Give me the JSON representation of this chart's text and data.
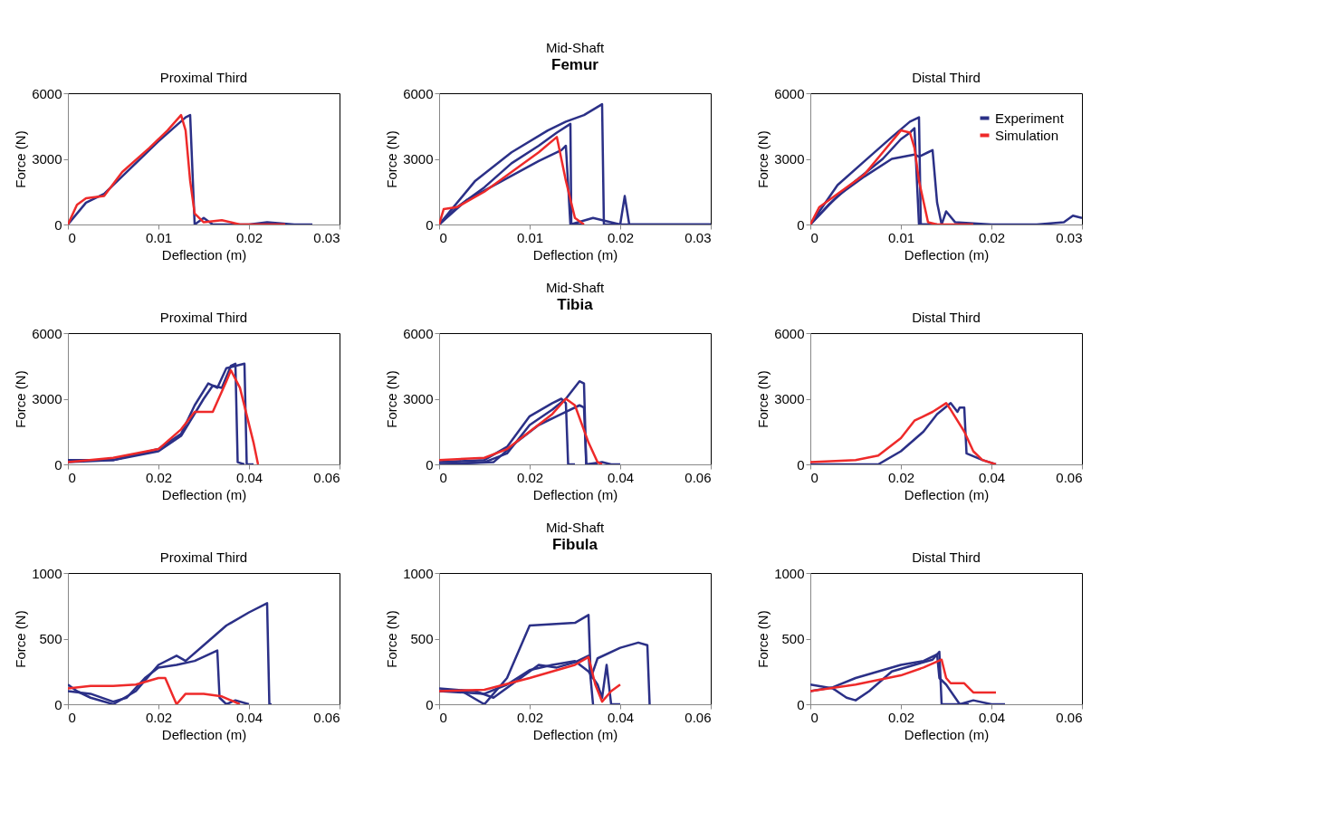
{
  "chart_data": [
    {
      "type": "line",
      "title": "Proximal Third",
      "xlabel": "Deflection (m)",
      "ylabel": "Force (N)",
      "xlim": [
        0,
        0.03
      ],
      "xticks": [
        0,
        0.01,
        0.02,
        0.03
      ],
      "ylim": [
        0,
        6000
      ],
      "yticks": [
        0,
        3000,
        6000
      ],
      "series": [
        {
          "color": "#2b3087",
          "x": [
            0,
            0.002,
            0.004,
            0.007,
            0.01,
            0.013,
            0.0135,
            0.014,
            0.015,
            0.016,
            0.02,
            0.022,
            0.025,
            0.027
          ],
          "values": [
            0,
            1000,
            1400,
            2600,
            3800,
            4900,
            5000,
            0,
            300,
            0,
            0,
            100,
            0,
            0
          ]
        },
        {
          "color": "#ee2a2a",
          "x": [
            0,
            0.001,
            0.002,
            0.004,
            0.006,
            0.009,
            0.011,
            0.0125,
            0.013,
            0.0135,
            0.014,
            0.015,
            0.017,
            0.019,
            0.024
          ],
          "values": [
            0,
            900,
            1200,
            1300,
            2400,
            3500,
            4300,
            5000,
            4300,
            2000,
            500,
            100,
            200,
            0,
            0
          ]
        }
      ]
    },
    {
      "type": "line",
      "title": "Mid-Shaft",
      "annotations": [
        "Femur"
      ],
      "xlabel": "Deflection (m)",
      "ylabel": "Force (N)",
      "xlim": [
        0,
        0.03
      ],
      "xticks": [
        0,
        0.01,
        0.02,
        0.03
      ],
      "ylim": [
        0,
        6000
      ],
      "yticks": [
        0,
        3000,
        6000
      ],
      "series": [
        {
          "color": "#2b3087",
          "x": [
            0,
            0.002,
            0.005,
            0.008,
            0.011,
            0.013,
            0.0145,
            0.0146,
            0.016
          ],
          "values": [
            0,
            800,
            1700,
            2800,
            3600,
            4200,
            4600,
            0,
            0
          ]
        },
        {
          "color": "#2b3087",
          "x": [
            0,
            0.004,
            0.008,
            0.012,
            0.014,
            0.016,
            0.018,
            0.0182,
            0.02,
            0.025,
            0.03
          ],
          "values": [
            0,
            2000,
            3300,
            4300,
            4700,
            5000,
            5500,
            0,
            0,
            0,
            0
          ]
        },
        {
          "color": "#2b3087",
          "x": [
            0,
            0.003,
            0.007,
            0.011,
            0.0135,
            0.014,
            0.0145,
            0.017,
            0.02,
            0.0205,
            0.021,
            0.03
          ],
          "values": [
            0,
            1100,
            2000,
            2900,
            3400,
            3600,
            0,
            300,
            0,
            1300,
            0,
            0
          ]
        },
        {
          "color": "#ee2a2a",
          "x": [
            0,
            0.0005,
            0.002,
            0.005,
            0.008,
            0.011,
            0.013,
            0.014,
            0.015,
            0.016
          ],
          "values": [
            0,
            700,
            800,
            1500,
            2400,
            3300,
            4000,
            2000,
            300,
            0
          ]
        }
      ]
    },
    {
      "type": "line",
      "title": "Distal Third",
      "legend": "top right",
      "xlabel": "Deflection (m)",
      "ylabel": "Force (N)",
      "xlim": [
        0,
        0.03
      ],
      "xticks": [
        0,
        0.01,
        0.02,
        0.03
      ],
      "ylim": [
        0,
        6000
      ],
      "yticks": [
        0,
        3000,
        6000
      ],
      "series": [
        {
          "name": "Experiment",
          "color": "#2b3087",
          "x": [
            0,
            0.003,
            0.006,
            0.009,
            0.011,
            0.012,
            0.0122,
            0.014
          ],
          "values": [
            0,
            1800,
            2900,
            4000,
            4700,
            4900,
            0,
            0
          ]
        },
        {
          "color": "#2b3087",
          "x": [
            0,
            0.003,
            0.006,
            0.009,
            0.0115,
            0.012,
            0.013,
            0.0135,
            0.014,
            0.0145,
            0.015,
            0.016,
            0.02,
            0.025,
            0.028,
            0.029,
            0.03
          ],
          "values": [
            0,
            1300,
            2200,
            3000,
            3200,
            3100,
            3300,
            3400,
            1000,
            0,
            600,
            100,
            0,
            0,
            100,
            400,
            300
          ]
        },
        {
          "color": "#2b3087",
          "x": [
            0,
            0.002,
            0.005,
            0.008,
            0.01,
            0.011,
            0.0115,
            0.012,
            0.013
          ],
          "values": [
            0,
            900,
            2000,
            3000,
            3900,
            4200,
            4400,
            0,
            0
          ]
        },
        {
          "name": "Simulation",
          "color": "#ee2a2a",
          "x": [
            0,
            0.001,
            0.003,
            0.006,
            0.008,
            0.01,
            0.011,
            0.0115,
            0.012,
            0.013,
            0.014,
            0.018
          ],
          "values": [
            0,
            800,
            1400,
            2300,
            3300,
            4300,
            4200,
            3500,
            2000,
            100,
            0,
            0
          ]
        }
      ]
    },
    {
      "type": "line",
      "title": "Proximal Third",
      "xlabel": "Deflection (m)",
      "ylabel": "Force (N)",
      "xlim": [
        0,
        0.06
      ],
      "xticks": [
        0,
        0.02,
        0.04,
        0.06
      ],
      "ylim": [
        0,
        6000
      ],
      "yticks": [
        0,
        3000,
        6000
      ],
      "series": [
        {
          "color": "#2b3087",
          "x": [
            0,
            0.01,
            0.02,
            0.025,
            0.03,
            0.032,
            0.034,
            0.036,
            0.037,
            0.0375,
            0.039
          ],
          "values": [
            200,
            200,
            600,
            1300,
            3000,
            3600,
            3500,
            4500,
            4600,
            100,
            0
          ]
        },
        {
          "color": "#2b3087",
          "x": [
            0,
            0.01,
            0.02,
            0.025,
            0.028,
            0.031,
            0.033,
            0.035,
            0.039,
            0.0395,
            0.041
          ],
          "values": [
            100,
            200,
            700,
            1400,
            2700,
            3700,
            3500,
            4400,
            4600,
            0,
            0
          ]
        },
        {
          "color": "#ee2a2a",
          "x": [
            0,
            0.01,
            0.02,
            0.025,
            0.028,
            0.032,
            0.035,
            0.036,
            0.038,
            0.041,
            0.042
          ],
          "values": [
            100,
            300,
            700,
            1600,
            2400,
            2400,
            3800,
            4300,
            3500,
            1000,
            0
          ]
        }
      ]
    },
    {
      "type": "line",
      "title": "Mid-Shaft",
      "annotations": [
        "Tibia"
      ],
      "xlabel": "Deflection (m)",
      "ylabel": "Force (N)",
      "xlim": [
        0,
        0.06
      ],
      "xticks": [
        0,
        0.02,
        0.04,
        0.06
      ],
      "ylim": [
        0,
        6000
      ],
      "yticks": [
        0,
        3000,
        6000
      ],
      "series": [
        {
          "color": "#2b3087",
          "x": [
            0,
            0.01,
            0.015,
            0.02,
            0.025,
            0.028,
            0.031,
            0.032,
            0.0325,
            0.035
          ],
          "values": [
            0,
            100,
            500,
            1800,
            2500,
            3000,
            3800,
            3700,
            0,
            0
          ]
        },
        {
          "color": "#2b3087",
          "x": [
            0,
            0.01,
            0.015,
            0.02,
            0.025,
            0.027,
            0.028,
            0.0285,
            0.03
          ],
          "values": [
            100,
            200,
            800,
            2200,
            2800,
            3000,
            2800,
            0,
            0
          ]
        },
        {
          "color": "#2b3087",
          "x": [
            0,
            0.012,
            0.017,
            0.022,
            0.027,
            0.031,
            0.032,
            0.0325,
            0.036,
            0.038,
            0.04
          ],
          "values": [
            0,
            100,
            1000,
            1800,
            2300,
            2700,
            2600,
            0,
            100,
            0,
            0
          ]
        },
        {
          "color": "#ee2a2a",
          "x": [
            0,
            0.01,
            0.015,
            0.02,
            0.025,
            0.028,
            0.03,
            0.033,
            0.035,
            0.036
          ],
          "values": [
            200,
            300,
            700,
            1500,
            2300,
            3000,
            2700,
            1000,
            100,
            0
          ]
        }
      ]
    },
    {
      "type": "line",
      "title": "Distal Third",
      "xlabel": "Deflection (m)",
      "ylabel": "Force (N)",
      "xlim": [
        0,
        0.06
      ],
      "xticks": [
        0,
        0.02,
        0.04,
        0.06
      ],
      "ylim": [
        0,
        6000
      ],
      "yticks": [
        0,
        3000,
        6000
      ],
      "series": [
        {
          "color": "#2b3087",
          "x": [
            0,
            0.015,
            0.02,
            0.025,
            0.028,
            0.031,
            0.0325,
            0.033,
            0.034,
            0.0345,
            0.038,
            0.041
          ],
          "values": [
            0,
            0,
            600,
            1500,
            2300,
            2800,
            2400,
            2600,
            2600,
            500,
            200,
            0
          ]
        },
        {
          "color": "#ee2a2a",
          "x": [
            0,
            0.01,
            0.015,
            0.02,
            0.023,
            0.027,
            0.03,
            0.031,
            0.034,
            0.036,
            0.038,
            0.041
          ],
          "values": [
            100,
            200,
            400,
            1200,
            2000,
            2400,
            2800,
            2500,
            1500,
            600,
            200,
            0
          ]
        }
      ]
    },
    {
      "type": "line",
      "title": "Proximal Third",
      "xlabel": "Deflection (m)",
      "ylabel": "Force (N)",
      "xlim": [
        0,
        0.06
      ],
      "xticks": [
        0,
        0.02,
        0.04,
        0.06
      ],
      "ylim": [
        0,
        1000
      ],
      "yticks": [
        0,
        500,
        1000
      ],
      "series": [
        {
          "color": "#2b3087",
          "x": [
            0,
            0.002,
            0.005,
            0.01,
            0.015,
            0.02,
            0.024,
            0.026,
            0.03,
            0.035,
            0.04,
            0.044,
            0.0445,
            0.045
          ],
          "values": [
            150,
            100,
            50,
            0,
            100,
            300,
            370,
            330,
            450,
            600,
            700,
            770,
            0,
            0
          ]
        },
        {
          "color": "#2b3087",
          "x": [
            0,
            0.005,
            0.01,
            0.013,
            0.017,
            0.02,
            0.024,
            0.028,
            0.033,
            0.0335,
            0.035,
            0.037,
            0.04
          ],
          "values": [
            100,
            80,
            20,
            50,
            200,
            280,
            300,
            330,
            410,
            50,
            0,
            30,
            0
          ]
        },
        {
          "color": "#ee2a2a",
          "x": [
            0,
            0.005,
            0.01,
            0.015,
            0.02,
            0.0215,
            0.023,
            0.024,
            0.026,
            0.03,
            0.034,
            0.038
          ],
          "values": [
            120,
            140,
            140,
            150,
            200,
            200,
            80,
            0,
            80,
            80,
            60,
            0
          ]
        }
      ]
    },
    {
      "type": "line",
      "title": "Mid-Shaft",
      "annotations": [
        "Fibula"
      ],
      "xlabel": "Deflection (m)",
      "ylabel": "Force (N)",
      "xlim": [
        0,
        0.06
      ],
      "xticks": [
        0,
        0.02,
        0.04,
        0.06
      ],
      "ylim": [
        0,
        1000
      ],
      "yticks": [
        0,
        500,
        1000
      ],
      "series": [
        {
          "color": "#2b3087",
          "x": [
            0,
            0.005,
            0.01,
            0.015,
            0.02,
            0.025,
            0.03,
            0.033,
            0.0335,
            0.035,
            0.04,
            0.044,
            0.046,
            0.0465
          ],
          "values": [
            100,
            100,
            0,
            200,
            600,
            610,
            620,
            680,
            200,
            350,
            430,
            470,
            450,
            0
          ]
        },
        {
          "color": "#2b3087",
          "x": [
            0,
            0.01,
            0.015,
            0.02,
            0.025,
            0.03,
            0.033,
            0.035,
            0.036,
            0.037,
            0.038,
            0.04
          ],
          "values": [
            100,
            80,
            150,
            260,
            300,
            330,
            250,
            150,
            50,
            300,
            0,
            0
          ]
        },
        {
          "color": "#2b3087",
          "x": [
            0,
            0.008,
            0.012,
            0.018,
            0.022,
            0.026,
            0.03,
            0.033,
            0.034
          ],
          "values": [
            120,
            100,
            50,
            200,
            300,
            280,
            320,
            370,
            0
          ]
        },
        {
          "color": "#ee2a2a",
          "x": [
            0,
            0.01,
            0.02,
            0.03,
            0.033,
            0.0345,
            0.036,
            0.038,
            0.04
          ],
          "values": [
            100,
            110,
            200,
            300,
            360,
            150,
            20,
            100,
            150
          ]
        }
      ]
    },
    {
      "type": "line",
      "title": "Distal Third",
      "xlabel": "Deflection (m)",
      "ylabel": "Force (N)",
      "xlim": [
        0,
        0.06
      ],
      "xticks": [
        0,
        0.02,
        0.04,
        0.06
      ],
      "ylim": [
        0,
        1000
      ],
      "yticks": [
        0,
        500,
        1000
      ],
      "series": [
        {
          "color": "#2b3087",
          "x": [
            0,
            0.005,
            0.008,
            0.01,
            0.013,
            0.018,
            0.023,
            0.027,
            0.0285,
            0.029,
            0.035
          ],
          "values": [
            150,
            120,
            50,
            30,
            100,
            250,
            300,
            340,
            400,
            0,
            0
          ]
        },
        {
          "color": "#2b3087",
          "x": [
            0,
            0.005,
            0.01,
            0.02,
            0.025,
            0.028,
            0.0285,
            0.03,
            0.033,
            0.036,
            0.04,
            0.043
          ],
          "values": [
            100,
            130,
            200,
            300,
            330,
            380,
            200,
            150,
            0,
            30,
            0,
            0
          ]
        },
        {
          "color": "#ee2a2a",
          "x": [
            0,
            0.01,
            0.02,
            0.025,
            0.029,
            0.03,
            0.031,
            0.034,
            0.036,
            0.041
          ],
          "values": [
            100,
            150,
            220,
            280,
            340,
            200,
            160,
            160,
            90,
            90
          ]
        }
      ]
    }
  ]
}
